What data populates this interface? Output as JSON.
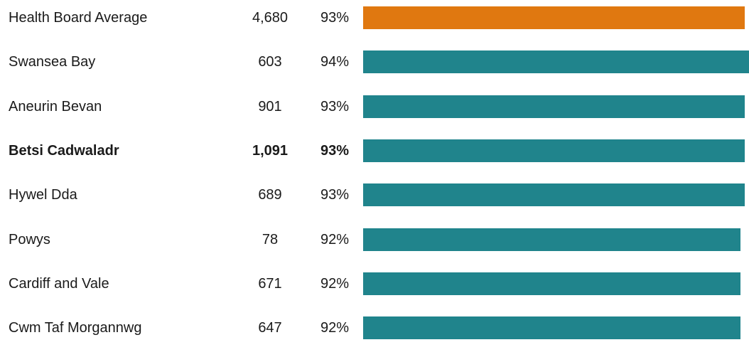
{
  "chart_data": {
    "type": "bar",
    "orientation": "horizontal",
    "columns": [
      "",
      "",
      ""
    ],
    "rows": [
      {
        "name": "Health Board Average",
        "count": "4,680",
        "percent_label": "93%",
        "value": 93,
        "highlight": "average"
      },
      {
        "name": "Swansea Bay",
        "count": "603",
        "percent_label": "94%",
        "value": 94
      },
      {
        "name": "Aneurin Bevan",
        "count": "901",
        "percent_label": "93%",
        "value": 93
      },
      {
        "name": "Betsi Cadwaladr",
        "count": "1,091",
        "percent_label": "93%",
        "value": 93,
        "bold": true
      },
      {
        "name": "Hywel Dda",
        "count": "689",
        "percent_label": "93%",
        "value": 93
      },
      {
        "name": "Powys",
        "count": "78",
        "percent_label": "92%",
        "value": 92
      },
      {
        "name": "Cardiff and Vale",
        "count": "671",
        "percent_label": "92%",
        "value": 92
      },
      {
        "name": "Cwm Taf Morgannwg",
        "count": "647",
        "percent_label": "92%",
        "value": 92
      }
    ],
    "colors": {
      "average_bar": "#e07810",
      "bar": "#20848c",
      "text": "#1a1a1a"
    }
  }
}
